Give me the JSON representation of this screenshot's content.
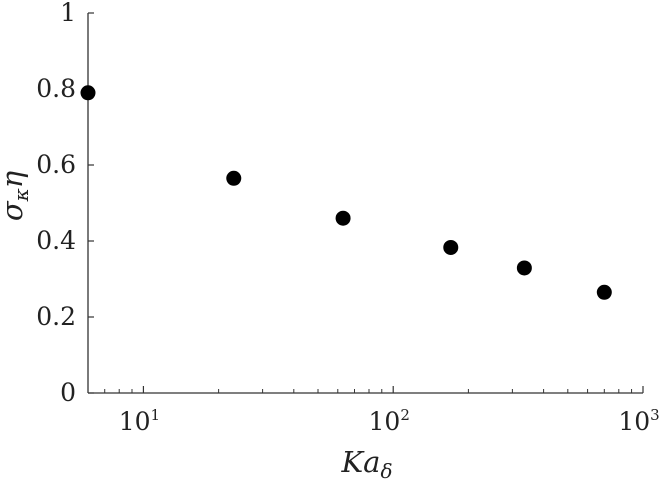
{
  "chart_data": {
    "type": "scatter",
    "xlabel": {
      "base": "Ka",
      "sub": "δ"
    },
    "ylabel": {
      "sym": "σ",
      "sub": "κ",
      "tail": "η"
    },
    "x_scale": "log",
    "xlim": [
      6,
      1000
    ],
    "ylim": [
      0,
      1
    ],
    "y_ticks": [
      "0",
      "0.2",
      "0.4",
      "0.6",
      "0.8",
      "1"
    ],
    "x_ticks": [
      {
        "base": "10",
        "exp": "1"
      },
      {
        "base": "10",
        "exp": "2"
      },
      {
        "base": "10",
        "exp": "3"
      }
    ],
    "grid": false,
    "marker_color": "#000000",
    "points": [
      {
        "x": 6,
        "y": 0.79
      },
      {
        "x": 23,
        "y": 0.565
      },
      {
        "x": 63,
        "y": 0.46
      },
      {
        "x": 170,
        "y": 0.383
      },
      {
        "x": 335,
        "y": 0.329
      },
      {
        "x": 700,
        "y": 0.265
      }
    ]
  }
}
